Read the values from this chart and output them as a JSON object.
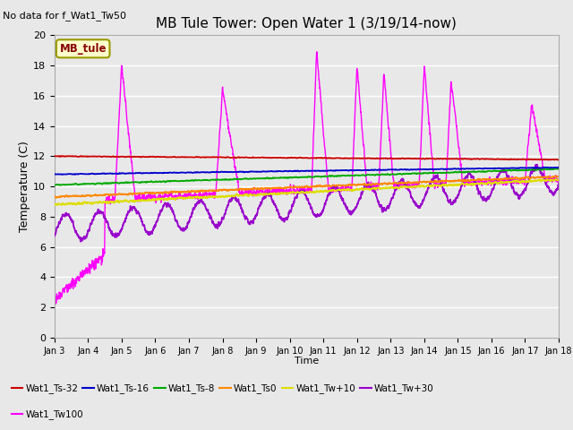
{
  "title": "MB Tule Tower: Open Water 1 (3/19/14-now)",
  "no_data_text": "No data for f_Wat1_Tw50",
  "xlabel": "Time",
  "ylabel": "Temperature (C)",
  "ylim": [
    0,
    20
  ],
  "xlim_days": [
    3,
    18
  ],
  "x_ticks": [
    3,
    4,
    5,
    6,
    7,
    8,
    9,
    10,
    11,
    12,
    13,
    14,
    15,
    16,
    17,
    18
  ],
  "x_tick_labels": [
    "Jan 3",
    "Jan 4",
    "Jan 5",
    "Jan 6",
    "Jan 7",
    "Jan 8",
    "Jan 9",
    "Jan 10",
    "Jan 11",
    "Jan 12",
    "Jan 13",
    "Jan 14",
    "Jan 15",
    "Jan 16",
    "Jan 17",
    "Jan 18"
  ],
  "y_ticks": [
    0,
    2,
    4,
    6,
    8,
    10,
    12,
    14,
    16,
    18,
    20
  ],
  "background_color": "#e8e8e8",
  "figure_background": "#e8e8e8",
  "series": {
    "Wat1_Ts-32": {
      "color": "#cc0000",
      "lw": 1.3
    },
    "Wat1_Ts-16": {
      "color": "#0000cc",
      "lw": 1.3
    },
    "Wat1_Ts-8": {
      "color": "#00aa00",
      "lw": 1.3
    },
    "Wat1_Ts0": {
      "color": "#ff8800",
      "lw": 1.3
    },
    "Wat1_Tw+10": {
      "color": "#dddd00",
      "lw": 1.3
    },
    "Wat1_Tw+30": {
      "color": "#9900cc",
      "lw": 1.3
    },
    "Wat1_Tw100": {
      "color": "#ff00ff",
      "lw": 1.0
    }
  },
  "legend_box_label": "MB_tule",
  "legend_box_facecolor": "#ffffcc",
  "legend_box_edgecolor": "#999900",
  "legend_box_textcolor": "#880000",
  "legend_entries_row1": [
    "Wat1_Ts-32",
    "Wat1_Ts-16",
    "Wat1_Ts-8",
    "Wat1_Ts0",
    "Wat1_Tw+10",
    "Wat1_Tw+30"
  ],
  "legend_entries_row2": [
    "Wat1_Tw100"
  ]
}
